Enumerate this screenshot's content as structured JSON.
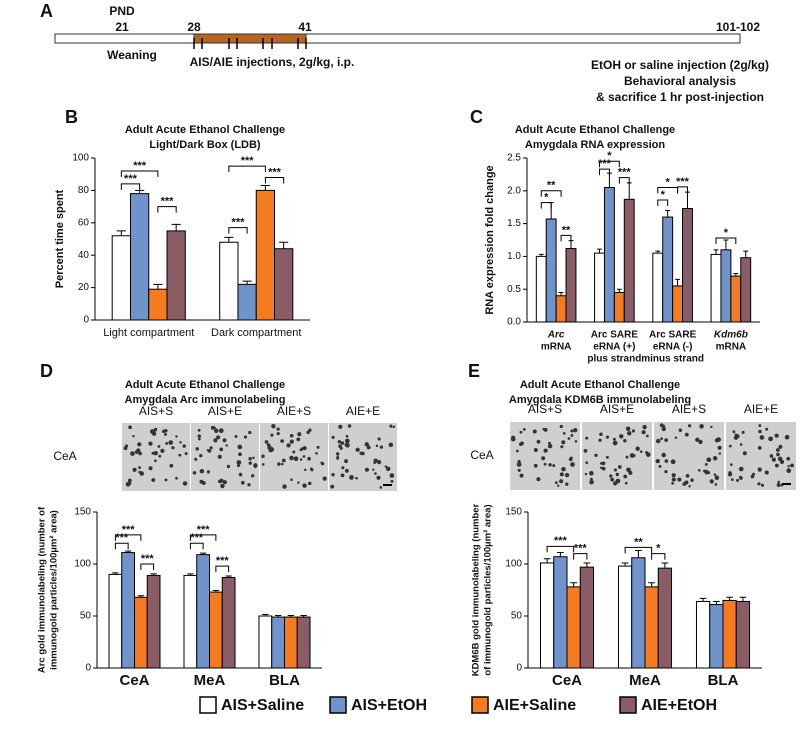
{
  "timeline": {
    "panel": "A",
    "pnd": "PND",
    "marks": [
      "21",
      "28",
      "41",
      "101-102"
    ],
    "weaning": "Weaning",
    "injections": "AIS/AIE injections, 2g/kg, i.p.",
    "right_lines": [
      "EtOH or saline injection (2g/kg)",
      "Behavioral analysis",
      "& sacrifice 1 hr post-injection"
    ]
  },
  "legend": [
    {
      "name": "AIS+Saline",
      "color": "#ffffff"
    },
    {
      "name": "AIS+EtOH",
      "color": "#7093cc"
    },
    {
      "name": "AIE+Saline",
      "color": "#f47b20"
    },
    {
      "name": "AIE+EtOH",
      "color": "#8a5d66"
    }
  ],
  "chart_data": [
    {
      "type": "bar",
      "panel": "B",
      "title": "Adult Acute Ethanol Challenge",
      "subtitle": "Light/Dark Box (LDB)",
      "categories": [
        [
          "Light compartment"
        ],
        [
          "Dark compartment"
        ]
      ],
      "ylabel": [
        "Percent time spent"
      ],
      "ylim": [
        0,
        100
      ],
      "yticks": [
        0,
        20,
        40,
        60,
        80,
        100
      ],
      "series": [
        {
          "color": "#ffffff",
          "values": [
            52,
            48
          ],
          "errors": [
            3,
            3
          ]
        },
        {
          "color": "#7093cc",
          "values": [
            78,
            22
          ],
          "errors": [
            2,
            2
          ]
        },
        {
          "color": "#f47b20",
          "values": [
            19,
            80
          ],
          "errors": [
            3,
            3
          ]
        },
        {
          "color": "#8a5d66",
          "values": [
            55,
            44
          ],
          "errors": [
            4,
            4
          ]
        }
      ],
      "annotations": [
        "***",
        "***",
        "***",
        "***",
        "***",
        "***"
      ]
    },
    {
      "type": "bar",
      "panel": "C",
      "title": "Adult Acute Ethanol Challenge",
      "subtitle": "Amygdala RNA expression",
      "categories": [
        [
          "Arc",
          "mRNA"
        ],
        [
          "Arc SARE",
          "eRNA (+)",
          "plus strand"
        ],
        [
          "Arc SARE",
          "eRNA (-)",
          "minus strand"
        ],
        [
          "Kdm6b",
          "mRNA"
        ]
      ],
      "ylabel": [
        "RNA expression fold change"
      ],
      "ylim": [
        0,
        2.5
      ],
      "yticks": [
        {
          "value": 0,
          "label": "0.0"
        },
        0.5,
        {
          "value": 1,
          "label": "1.0"
        },
        1.5,
        {
          "value": 2,
          "label": "2.0"
        },
        2.5
      ],
      "series": [
        {
          "color": "#ffffff",
          "values": [
            1.0,
            1.05,
            1.05,
            1.03
          ],
          "errors": [
            0.03,
            0.06,
            0.03,
            0.07
          ]
        },
        {
          "color": "#7093cc",
          "values": [
            1.57,
            2.05,
            1.6,
            1.1
          ],
          "errors": [
            0.25,
            0.22,
            0.1,
            0.15
          ]
        },
        {
          "color": "#f47b20",
          "values": [
            0.4,
            0.45,
            0.55,
            0.7
          ],
          "errors": [
            0.05,
            0.05,
            0.1,
            0.04
          ]
        },
        {
          "color": "#8a5d66",
          "values": [
            1.12,
            1.87,
            1.73,
            0.98
          ],
          "errors": [
            0.12,
            0.25,
            0.25,
            0.1
          ]
        }
      ],
      "annotations": [
        "**",
        "*",
        "**",
        "*",
        "***",
        "***",
        "*",
        "*",
        "***",
        "*"
      ]
    },
    {
      "type": "bar",
      "panel": "D",
      "title": "Adult Acute Ethanol Challenge",
      "subtitle": "Amygdala Arc immunolabeling",
      "image_labels": [
        "AIS+S",
        "AIS+E",
        "AIE+S",
        "AIE+E"
      ],
      "image_region": "CeA",
      "categories": [
        [
          "CeA"
        ],
        [
          "MeA"
        ],
        [
          "BLA"
        ]
      ],
      "ylabel": [
        "Arc gold immunolabeling (number of",
        "immunogold particles/100µm² area)"
      ],
      "ylim": [
        0,
        150
      ],
      "yticks": [
        0,
        50,
        100,
        150
      ],
      "series": [
        {
          "color": "#ffffff",
          "values": [
            90,
            89,
            50
          ],
          "errors": [
            1.5,
            1.5,
            1.5
          ]
        },
        {
          "color": "#7093cc",
          "values": [
            111,
            109,
            49
          ],
          "errors": [
            1.5,
            1.5,
            1.5
          ]
        },
        {
          "color": "#f47b20",
          "values": [
            68,
            73,
            49
          ],
          "errors": [
            1.5,
            1.5,
            1.5
          ]
        },
        {
          "color": "#8a5d66",
          "values": [
            89,
            87,
            49
          ],
          "errors": [
            1.5,
            1.5,
            1.5
          ]
        }
      ],
      "annotations": [
        "***",
        "***",
        "***",
        "***",
        "***",
        "***"
      ]
    },
    {
      "type": "bar",
      "panel": "E",
      "title": "Adult Acute Ethanol Challenge",
      "subtitle": "Amygdala KDM6B immunolabeling",
      "image_labels": [
        "AIS+S",
        "AIS+E",
        "AIE+S",
        "AIE+E"
      ],
      "image_region": "CeA",
      "categories": [
        [
          "CeA"
        ],
        [
          "MeA"
        ],
        [
          "BLA"
        ]
      ],
      "ylabel": [
        "KDM6B gold immunolabeling (number",
        "of immunogold particles/100µm² area)"
      ],
      "ylim": [
        0,
        150
      ],
      "yticks": [
        0,
        50,
        100,
        150
      ],
      "series": [
        {
          "color": "#ffffff",
          "values": [
            101,
            98,
            64
          ],
          "errors": [
            4,
            3,
            3
          ]
        },
        {
          "color": "#7093cc",
          "values": [
            107,
            106,
            61
          ],
          "errors": [
            4,
            7,
            3
          ]
        },
        {
          "color": "#f47b20",
          "values": [
            78,
            78,
            65
          ],
          "errors": [
            4,
            4,
            3
          ]
        },
        {
          "color": "#8a5d66",
          "values": [
            97,
            96,
            64
          ],
          "errors": [
            4,
            5,
            4
          ]
        }
      ],
      "annotations": [
        "***",
        "***",
        "**",
        "*"
      ]
    }
  ]
}
